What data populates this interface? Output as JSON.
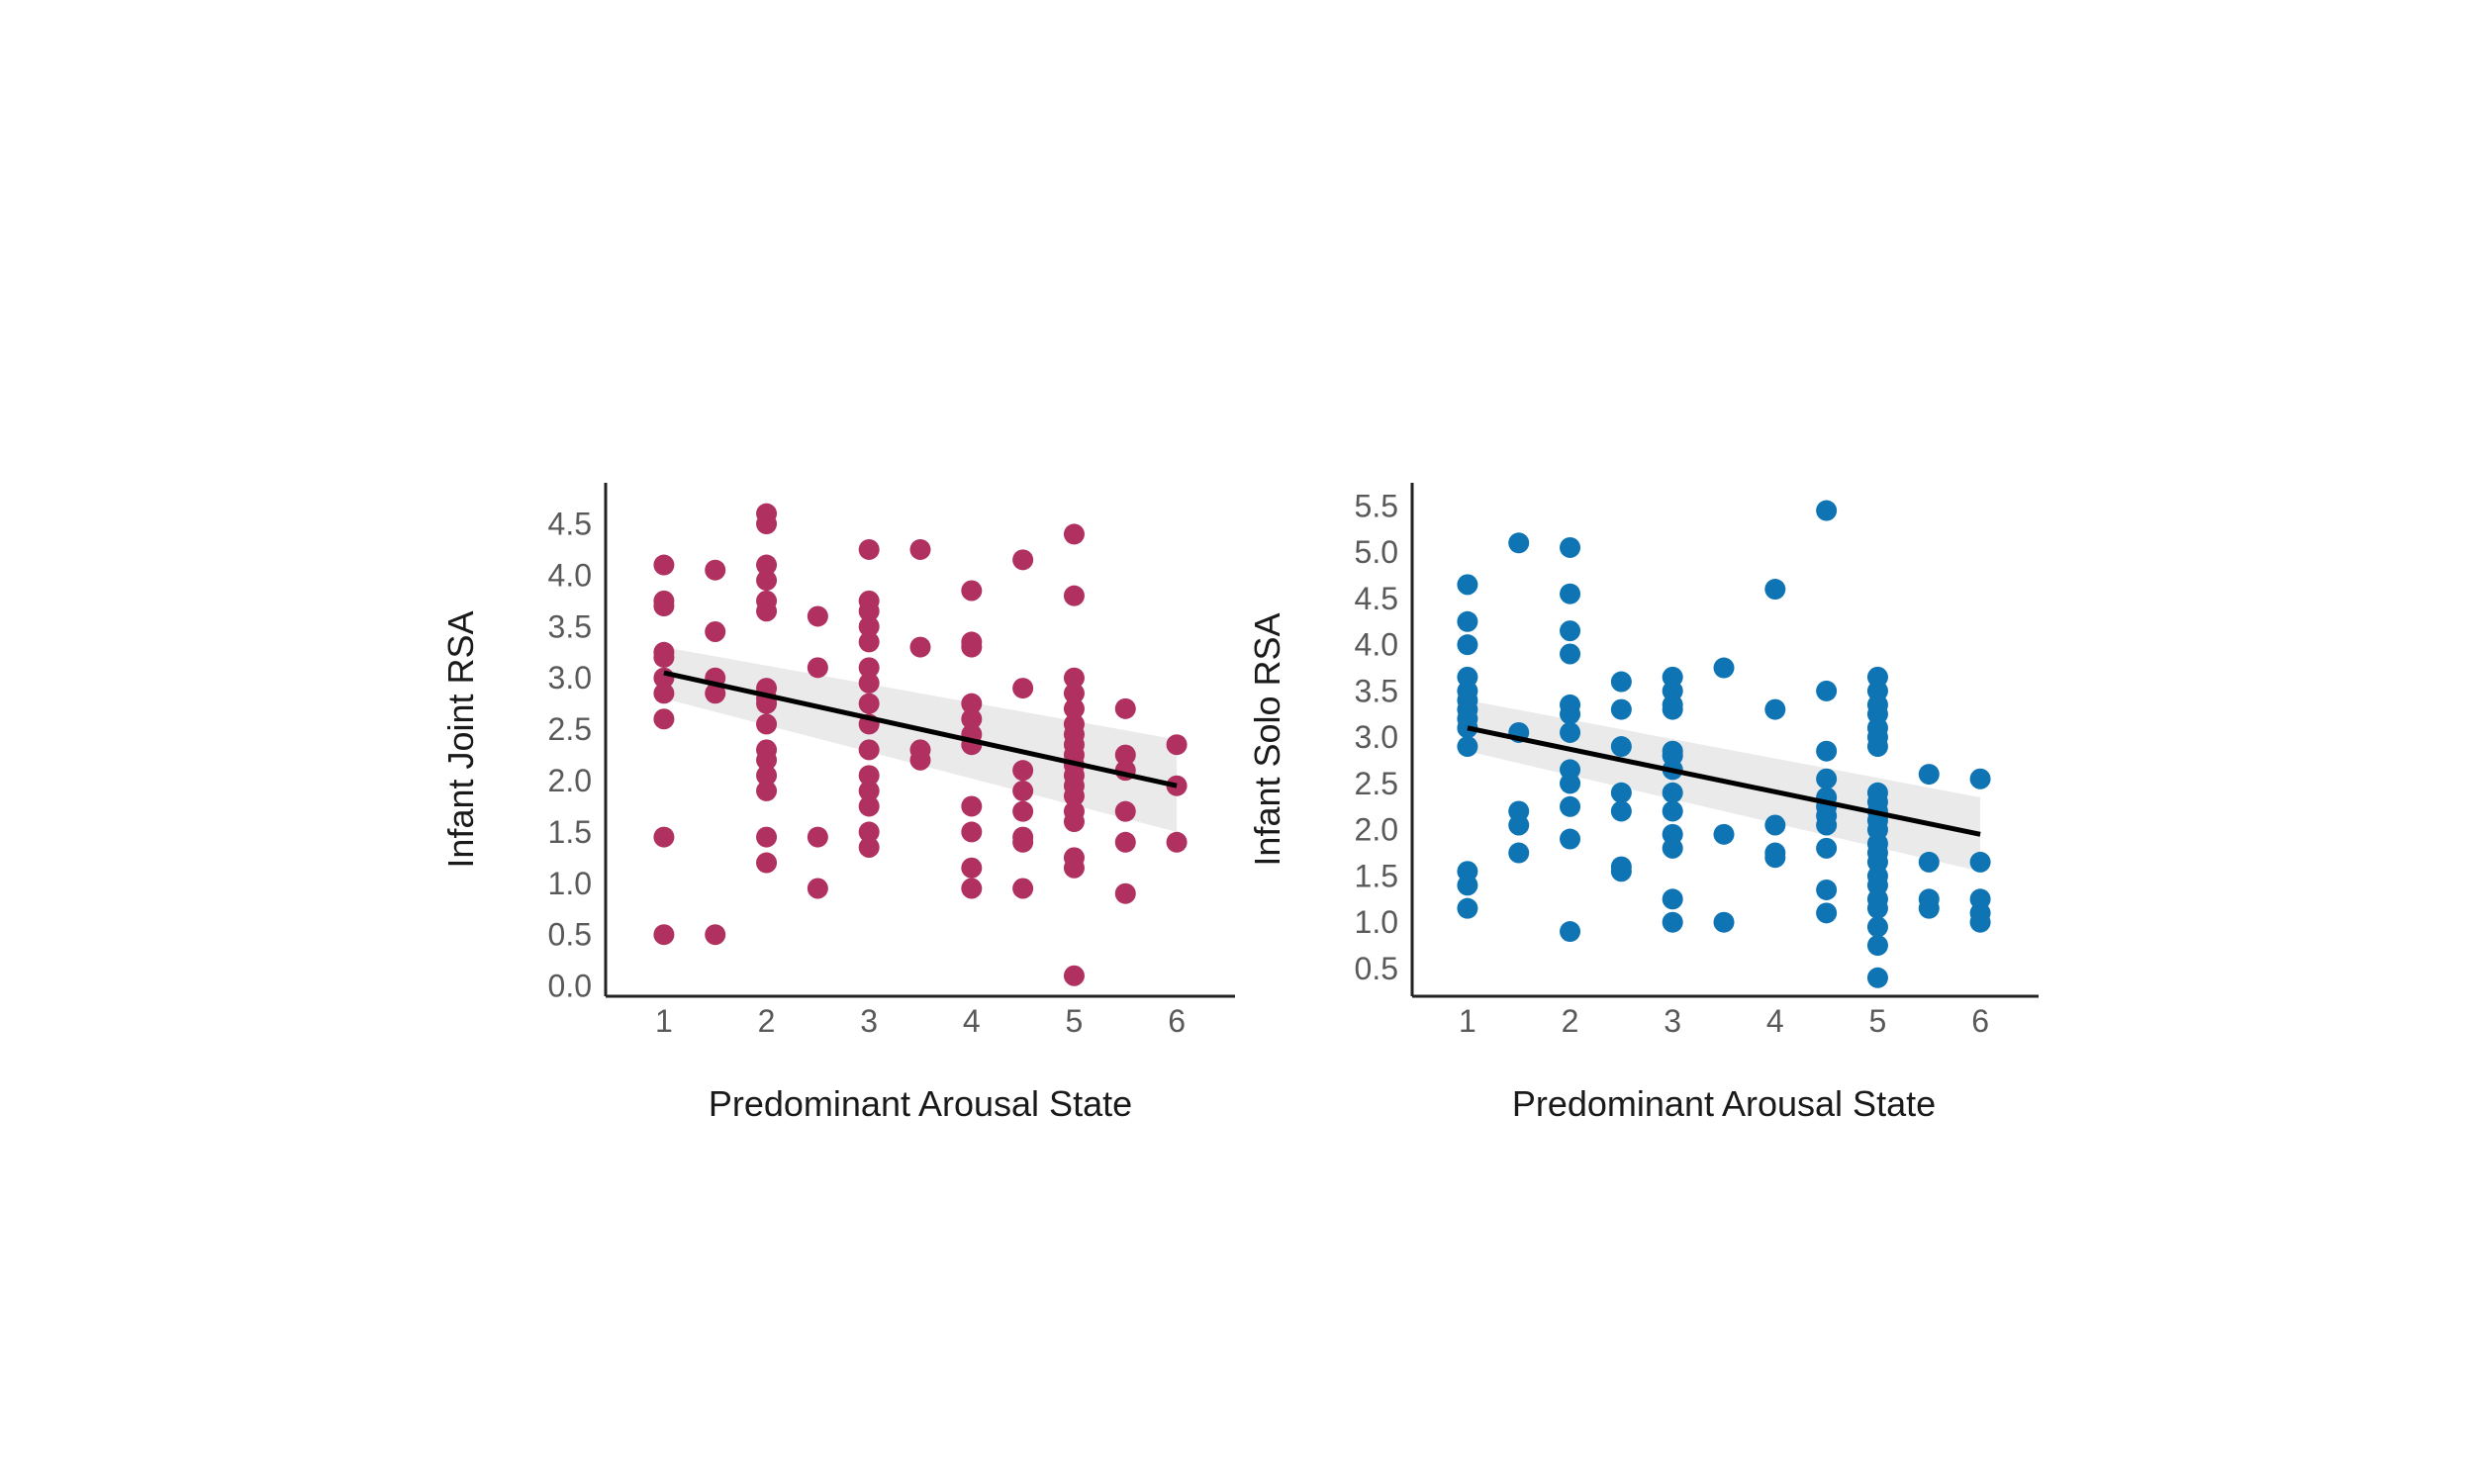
{
  "chart_data": [
    {
      "type": "scatter",
      "xlabel": "Predominant Arousal State",
      "ylabel": "Infant Joint RSA",
      "x_ticks": [
        "1",
        "2",
        "3",
        "4",
        "5",
        "6"
      ],
      "y_ticks": [
        "0.0",
        "0.5",
        "1.0",
        "1.5",
        "2.0",
        "2.5",
        "3.0",
        "3.5",
        "4.0",
        "4.5"
      ],
      "xlim": [
        0.75,
        6.25
      ],
      "ylim": [
        -0.1,
        4.9
      ],
      "color": "#b03060",
      "grid": false,
      "points": [
        [
          1,
          4.1
        ],
        [
          1,
          3.75
        ],
        [
          1,
          3.7
        ],
        [
          1,
          3.25
        ],
        [
          1,
          3.2
        ],
        [
          1,
          3.0
        ],
        [
          1,
          2.85
        ],
        [
          1,
          2.6
        ],
        [
          1,
          1.45
        ],
        [
          1,
          0.5
        ],
        [
          1.5,
          4.05
        ],
        [
          1.5,
          3.45
        ],
        [
          1.5,
          3.0
        ],
        [
          1.5,
          2.85
        ],
        [
          1.5,
          0.5
        ],
        [
          2,
          4.6
        ],
        [
          2,
          4.5
        ],
        [
          2,
          4.1
        ],
        [
          2,
          3.95
        ],
        [
          2,
          3.75
        ],
        [
          2,
          3.65
        ],
        [
          2,
          2.9
        ],
        [
          2,
          2.8
        ],
        [
          2,
          2.75
        ],
        [
          2,
          2.55
        ],
        [
          2,
          2.3
        ],
        [
          2,
          2.2
        ],
        [
          2,
          2.05
        ],
        [
          2,
          1.9
        ],
        [
          2,
          1.45
        ],
        [
          2,
          1.2
        ],
        [
          2.5,
          3.6
        ],
        [
          2.5,
          3.1
        ],
        [
          2.5,
          1.45
        ],
        [
          2.5,
          0.95
        ],
        [
          3,
          4.25
        ],
        [
          3,
          3.75
        ],
        [
          3,
          3.65
        ],
        [
          3,
          3.5
        ],
        [
          3,
          3.35
        ],
        [
          3,
          3.1
        ],
        [
          3,
          2.95
        ],
        [
          3,
          2.75
        ],
        [
          3,
          2.55
        ],
        [
          3,
          2.3
        ],
        [
          3,
          2.05
        ],
        [
          3,
          1.9
        ],
        [
          3,
          1.75
        ],
        [
          3,
          1.5
        ],
        [
          3,
          1.35
        ],
        [
          3.5,
          4.25
        ],
        [
          3.5,
          3.3
        ],
        [
          3.5,
          2.3
        ],
        [
          3.5,
          2.2
        ],
        [
          4,
          3.85
        ],
        [
          4,
          3.35
        ],
        [
          4,
          3.3
        ],
        [
          4,
          2.75
        ],
        [
          4,
          2.6
        ],
        [
          4,
          2.45
        ],
        [
          4,
          2.35
        ],
        [
          4,
          1.75
        ],
        [
          4,
          1.5
        ],
        [
          4,
          1.15
        ],
        [
          4,
          0.95
        ],
        [
          4.5,
          4.15
        ],
        [
          4.5,
          2.9
        ],
        [
          4.5,
          2.1
        ],
        [
          4.5,
          1.9
        ],
        [
          4.5,
          1.7
        ],
        [
          4.5,
          1.45
        ],
        [
          4.5,
          1.4
        ],
        [
          4.5,
          0.95
        ],
        [
          5,
          4.4
        ],
        [
          5,
          3.8
        ],
        [
          5,
          3.0
        ],
        [
          5,
          2.85
        ],
        [
          5,
          2.7
        ],
        [
          5,
          2.55
        ],
        [
          5,
          2.45
        ],
        [
          5,
          2.35
        ],
        [
          5,
          2.25
        ],
        [
          5,
          2.15
        ],
        [
          5,
          2.05
        ],
        [
          5,
          1.95
        ],
        [
          5,
          1.85
        ],
        [
          5,
          1.7
        ],
        [
          5,
          1.6
        ],
        [
          5,
          1.25
        ],
        [
          5,
          1.15
        ],
        [
          5,
          0.1
        ],
        [
          5.5,
          2.7
        ],
        [
          5.5,
          2.25
        ],
        [
          5.5,
          2.1
        ],
        [
          5.5,
          1.7
        ],
        [
          5.5,
          1.4
        ],
        [
          5.5,
          0.9
        ],
        [
          6,
          2.35
        ],
        [
          6,
          1.95
        ],
        [
          6,
          1.4
        ]
      ],
      "regression": {
        "x": [
          1,
          6
        ],
        "y": [
          3.05,
          1.95
        ]
      },
      "ci_band": {
        "x": [
          1,
          6
        ],
        "upper": [
          3.3,
          2.4
        ],
        "lower": [
          2.8,
          1.5
        ]
      }
    },
    {
      "type": "scatter",
      "xlabel": "Predominant Arousal State",
      "ylabel": "Infant Solo RSA",
      "x_ticks": [
        "1",
        "2",
        "3",
        "4",
        "5",
        "6"
      ],
      "y_ticks": [
        "0.5",
        "1.0",
        "1.5",
        "2.0",
        "2.5",
        "3.0",
        "3.5",
        "4.0",
        "4.5",
        "5.0",
        "5.5"
      ],
      "xlim": [
        0.75,
        6.25
      ],
      "ylim": [
        0.2,
        5.75
      ],
      "color": "#0e74b4",
      "grid": false,
      "points": [
        [
          1,
          4.65
        ],
        [
          1,
          4.25
        ],
        [
          1,
          4.0
        ],
        [
          1,
          3.65
        ],
        [
          1,
          3.5
        ],
        [
          1,
          3.4
        ],
        [
          1,
          3.3
        ],
        [
          1,
          3.2
        ],
        [
          1,
          3.1
        ],
        [
          1,
          2.9
        ],
        [
          1,
          1.55
        ],
        [
          1,
          1.4
        ],
        [
          1,
          1.15
        ],
        [
          1.5,
          5.1
        ],
        [
          1.5,
          3.05
        ],
        [
          1.5,
          2.2
        ],
        [
          1.5,
          2.05
        ],
        [
          1.5,
          1.75
        ],
        [
          2,
          5.05
        ],
        [
          2,
          4.55
        ],
        [
          2,
          4.15
        ],
        [
          2,
          3.9
        ],
        [
          2,
          3.35
        ],
        [
          2,
          3.25
        ],
        [
          2,
          3.05
        ],
        [
          2,
          2.65
        ],
        [
          2,
          2.5
        ],
        [
          2,
          2.25
        ],
        [
          2,
          1.9
        ],
        [
          2,
          0.9
        ],
        [
          2.5,
          3.6
        ],
        [
          2.5,
          3.3
        ],
        [
          2.5,
          2.9
        ],
        [
          2.5,
          2.4
        ],
        [
          2.5,
          2.2
        ],
        [
          2.5,
          1.6
        ],
        [
          2.5,
          1.55
        ],
        [
          3,
          3.65
        ],
        [
          3,
          3.5
        ],
        [
          3,
          3.35
        ],
        [
          3,
          3.3
        ],
        [
          3,
          2.85
        ],
        [
          3,
          2.8
        ],
        [
          3,
          2.65
        ],
        [
          3,
          2.4
        ],
        [
          3,
          2.2
        ],
        [
          3,
          1.95
        ],
        [
          3,
          1.8
        ],
        [
          3,
          1.25
        ],
        [
          3,
          1.0
        ],
        [
          3.5,
          3.75
        ],
        [
          3.5,
          1.95
        ],
        [
          3.5,
          1.0
        ],
        [
          4,
          4.6
        ],
        [
          4,
          3.3
        ],
        [
          4,
          2.05
        ],
        [
          4,
          1.75
        ],
        [
          4,
          1.7
        ],
        [
          4.5,
          5.45
        ],
        [
          4.5,
          3.5
        ],
        [
          4.5,
          2.85
        ],
        [
          4.5,
          2.55
        ],
        [
          4.5,
          2.35
        ],
        [
          4.5,
          2.25
        ],
        [
          4.5,
          2.15
        ],
        [
          4.5,
          2.05
        ],
        [
          4.5,
          1.8
        ],
        [
          4.5,
          1.35
        ],
        [
          4.5,
          1.1
        ],
        [
          5,
          3.65
        ],
        [
          5,
          3.5
        ],
        [
          5,
          3.35
        ],
        [
          5,
          3.25
        ],
        [
          5,
          3.1
        ],
        [
          5,
          3.0
        ],
        [
          5,
          2.9
        ],
        [
          5,
          2.4
        ],
        [
          5,
          2.3
        ],
        [
          5,
          2.2
        ],
        [
          5,
          2.1
        ],
        [
          5,
          2.0
        ],
        [
          5,
          1.85
        ],
        [
          5,
          1.75
        ],
        [
          5,
          1.65
        ],
        [
          5,
          1.5
        ],
        [
          5,
          1.4
        ],
        [
          5,
          1.25
        ],
        [
          5,
          1.15
        ],
        [
          5,
          0.95
        ],
        [
          5,
          0.75
        ],
        [
          5,
          0.4
        ],
        [
          5.5,
          2.6
        ],
        [
          5.5,
          1.65
        ],
        [
          5.5,
          1.25
        ],
        [
          5.5,
          1.15
        ],
        [
          6,
          2.55
        ],
        [
          6,
          1.65
        ],
        [
          6,
          1.25
        ],
        [
          6,
          1.1
        ],
        [
          6,
          1.0
        ]
      ],
      "regression": {
        "x": [
          1,
          6
        ],
        "y": [
          3.1,
          1.95
        ]
      },
      "ci_band": {
        "x": [
          1,
          6
        ],
        "upper": [
          3.4,
          2.35
        ],
        "lower": [
          2.85,
          1.55
        ]
      }
    }
  ]
}
